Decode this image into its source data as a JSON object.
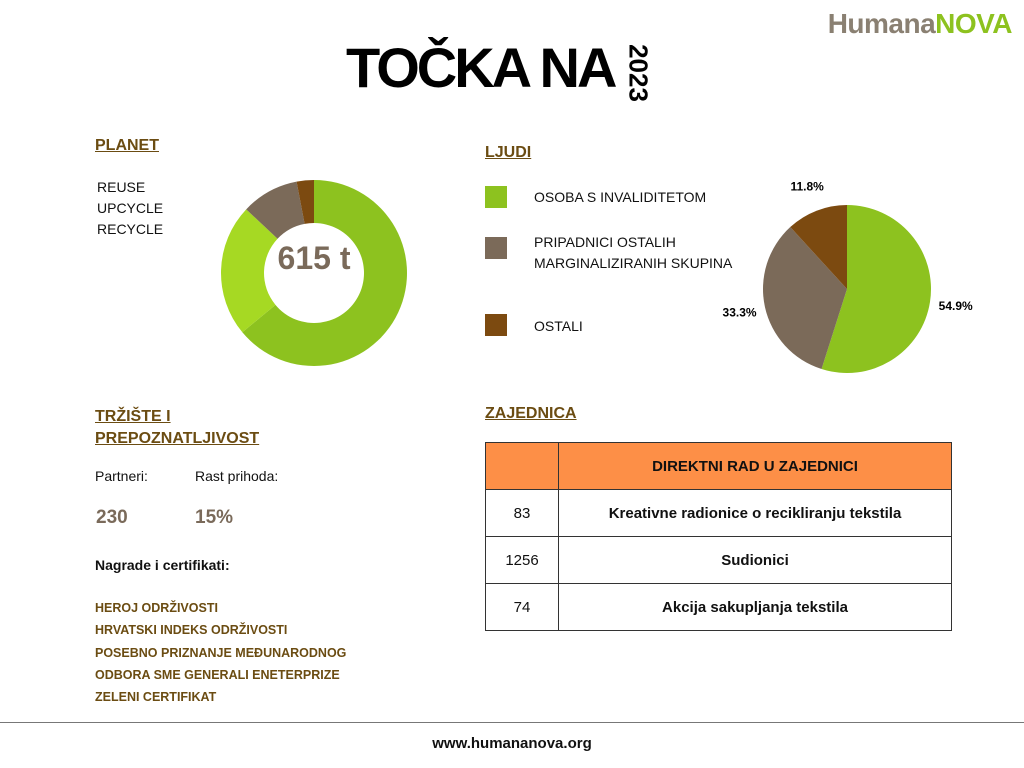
{
  "brand": {
    "part1": "Humana",
    "part2": "NOVA"
  },
  "header": {
    "title": "TOČKA NA",
    "year": "2023"
  },
  "planet": {
    "title": "PLANET",
    "items": [
      "REUSE",
      "UPCYCLE",
      "RECYCLE"
    ],
    "center_label": "615 t",
    "segments": [
      {
        "value": 64,
        "color": "#8dc21f"
      },
      {
        "value": 23,
        "color": "#a6d923"
      },
      {
        "value": 10,
        "color": "#7b6a59"
      },
      {
        "value": 3,
        "color": "#7c4a10"
      }
    ]
  },
  "ljudi": {
    "title": "LJUDI",
    "legend": [
      {
        "label": "OSOBA S INVALIDITETOM",
        "color": "#8dc21f"
      },
      {
        "label_line1": "PRIPADNICI OSTALIH",
        "label_line2": "MARGINALIZIRANIH SKUPINA",
        "color": "#7b6a59"
      },
      {
        "label": "OSTALI",
        "color": "#7c4a10"
      }
    ]
  },
  "chart_data": {
    "type": "pie",
    "slices": [
      {
        "name": "OSOBA S INVALIDITETOM",
        "value": 54.9,
        "label": "54.9%",
        "color": "#8dc21f"
      },
      {
        "name": "PRIPADNICI OSTALIH MARGINALIZIRANIH SKUPINA",
        "value": 33.3,
        "label": "33.3%",
        "color": "#7b6a59"
      },
      {
        "name": "OSTALI",
        "value": 11.8,
        "label": "11.8%",
        "color": "#7c4a10"
      }
    ]
  },
  "trziste": {
    "title_line1": "TRŽIŠTE I",
    "title_line2": "PREPOZNATLJIVOST",
    "partners_label": "Partneri:",
    "partners_value": "230",
    "growth_label": "Rast prihoda:",
    "growth_value": "15%",
    "awards_title": "Nagrade i certifikati:",
    "awards": [
      "HEROJ ODRŽIVOSTI",
      "HRVATSKI INDEKS ODRŽIVOSTI",
      "POSEBNO PRIZNANJE MEĐUNARODNOG",
      "ODBORA SME GENERALI ENETERPRIZE",
      "ZELENI CERTIFIKAT"
    ]
  },
  "zajednica": {
    "title": "ZAJEDNICA",
    "header": "DIREKTNI RAD U ZAJEDNICI",
    "rows": [
      {
        "value": "83",
        "label": "Kreativne radionice o recikliranju tekstila"
      },
      {
        "value": "1256",
        "label": "Sudionici"
      },
      {
        "value": "74",
        "label": "Akcija sakupljanja tekstila"
      }
    ]
  },
  "footer": {
    "url": "www.humananova.org"
  }
}
